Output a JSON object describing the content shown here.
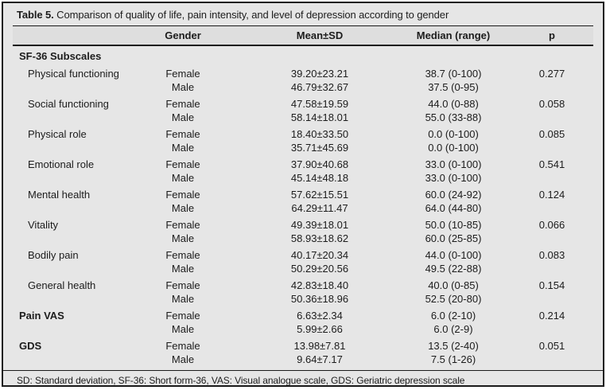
{
  "table": {
    "title_label": "Table 5.",
    "title_text": "Comparison of quality of life, pain intensity, and level of depression according to gender",
    "columns": {
      "gender": "Gender",
      "mean_sd": "Mean±SD",
      "median_range": "Median (range)",
      "p": "p"
    },
    "gender_labels": {
      "female": "Female",
      "male": "Male"
    },
    "section_header": "SF-36 Subscales",
    "rows": [
      {
        "label": "Physical functioning",
        "bold": false,
        "female": {
          "mean_sd": "39.20±23.21",
          "median_range": "38.7 (0-100)"
        },
        "male": {
          "mean_sd": "46.79±32.67",
          "median_range": "37.5 (0-95)"
        },
        "p": "0.277"
      },
      {
        "label": "Social functioning",
        "bold": false,
        "female": {
          "mean_sd": "47.58±19.59",
          "median_range": "44.0 (0-88)"
        },
        "male": {
          "mean_sd": "58.14±18.01",
          "median_range": "55.0 (33-88)"
        },
        "p": "0.058"
      },
      {
        "label": "Physical role",
        "bold": false,
        "female": {
          "mean_sd": "18.40±33.50",
          "median_range": "0.0 (0-100)"
        },
        "male": {
          "mean_sd": "35.71±45.69",
          "median_range": "0.0 (0-100)"
        },
        "p": "0.085"
      },
      {
        "label": "Emotional role",
        "bold": false,
        "female": {
          "mean_sd": "37.90±40.68",
          "median_range": "33.0 (0-100)"
        },
        "male": {
          "mean_sd": "45.14±48.18",
          "median_range": "33.0 (0-100)"
        },
        "p": "0.541"
      },
      {
        "label": "Mental health",
        "bold": false,
        "female": {
          "mean_sd": "57.62±15.51",
          "median_range": "60.0 (24-92)"
        },
        "male": {
          "mean_sd": "64.29±11.47",
          "median_range": "64.0 (44-80)"
        },
        "p": "0.124"
      },
      {
        "label": "Vitality",
        "bold": false,
        "female": {
          "mean_sd": "49.39±18.01",
          "median_range": "50.0 (10-85)"
        },
        "male": {
          "mean_sd": "58.93±18.62",
          "median_range": "60.0 (25-85)"
        },
        "p": "0.066"
      },
      {
        "label": "Bodily pain",
        "bold": false,
        "female": {
          "mean_sd": "40.17±20.34",
          "median_range": "44.0 (0-100)"
        },
        "male": {
          "mean_sd": "50.29±20.56",
          "median_range": "49.5 (22-88)"
        },
        "p": "0.083"
      },
      {
        "label": "General health",
        "bold": false,
        "female": {
          "mean_sd": "42.83±18.40",
          "median_range": "40.0 (0-85)"
        },
        "male": {
          "mean_sd": "50.36±18.96",
          "median_range": "52.5 (20-80)"
        },
        "p": "0.154"
      },
      {
        "label": "Pain VAS",
        "bold": true,
        "female": {
          "mean_sd": "6.63±2.34",
          "median_range": "6.0 (2-10)"
        },
        "male": {
          "mean_sd": "5.99±2.66",
          "median_range": "6.0 (2-9)"
        },
        "p": "0.214"
      },
      {
        "label": "GDS",
        "bold": true,
        "female": {
          "mean_sd": "13.98±7.81",
          "median_range": "13.5 (2-40)"
        },
        "male": {
          "mean_sd": "9.64±7.17",
          "median_range": "7.5 (1-26)"
        },
        "p": "0.051"
      }
    ],
    "footnote": "SD: Standard deviation, SF-36: Short form-36, VAS: Visual analogue scale, GDS: Geriatric depression scale"
  },
  "colors": {
    "table_background": "#e6e6e6",
    "header_background": "#dedede",
    "rule": "#1a1a1a",
    "text": "#1c1c1c"
  }
}
